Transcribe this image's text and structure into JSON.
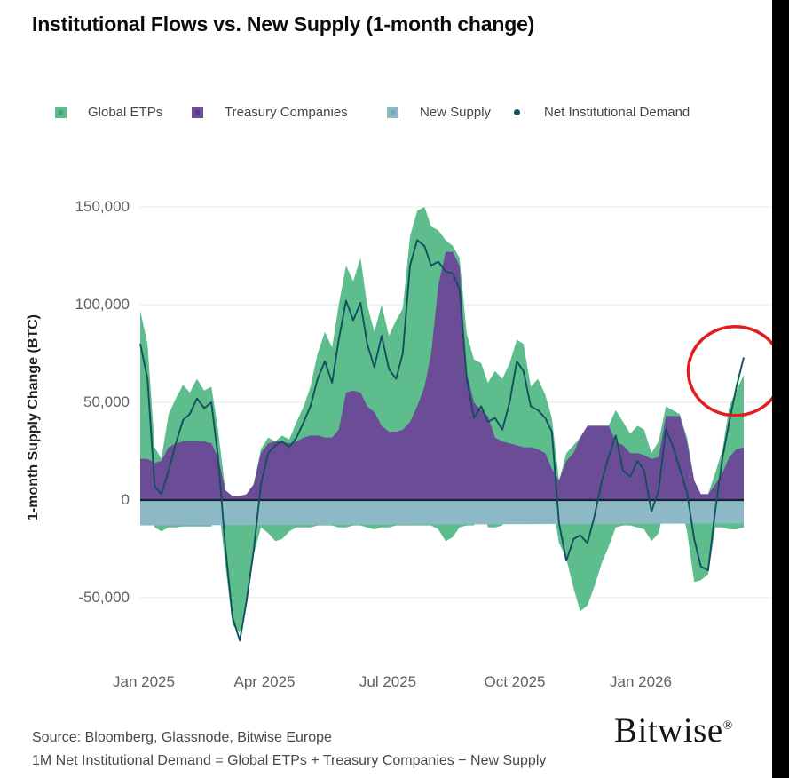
{
  "title": "Institutional Flows vs. New Supply (1-month change)",
  "colors": {
    "global_etps": "#5dbd8c",
    "treasury_companies": "#6b4c96",
    "new_supply": "#8db9c6",
    "net_demand_line": "#134f5e",
    "zero_line": "#16262e",
    "gridline": "#ececec",
    "annotation_circle": "#e11d1d",
    "title_text": "#0b0b0b",
    "tick_text": "#5d6266"
  },
  "legend": {
    "items": [
      {
        "label": "Global ETPs",
        "marker": "square",
        "color": "#5dbd8c"
      },
      {
        "label": "Treasury Companies",
        "marker": "square",
        "color": "#6b4c96"
      },
      {
        "label": "New Supply",
        "marker": "square",
        "color": "#8db9c6"
      },
      {
        "label": "Net Institutional Demand",
        "marker": "dot",
        "color": "#134f5e"
      }
    ]
  },
  "y_axis": {
    "title": "1-month Supply Change (BTC)",
    "ticks": [
      "150,000",
      "100,000",
      "50,000",
      "0",
      "-50,000"
    ]
  },
  "x_axis": {
    "ticks": [
      {
        "label": "Jan 2025",
        "f": 0.006
      },
      {
        "label": "Apr 2025",
        "f": 0.206
      },
      {
        "label": "Jul 2025",
        "f": 0.41
      },
      {
        "label": "Oct 2025",
        "f": 0.62
      },
      {
        "label": "Jan 2026",
        "f": 0.829
      }
    ]
  },
  "footer": {
    "source": "Source: Bloomberg, Glassnode, Bitwise Europe",
    "formula": "1M Net Institutional Demand = Global ETPs + Treasury Companies − New Supply"
  },
  "logo": {
    "text": "Bitwise",
    "registered": "®"
  },
  "annotation": {
    "shape": "ellipse",
    "meaning": "highlights final spike in net institutional demand",
    "center_f": 0.986,
    "center_value_kbtc": 66,
    "rx": 53,
    "ry": 50,
    "stroke_width": 3.5,
    "color": "#e11d1d"
  },
  "chart_data": {
    "type": "area",
    "subtype": "stacked areas (Global ETPs over Treasury Companies), New Supply band below zero, net demand line overlay",
    "title": "Institutional Flows vs. New Supply (1-month change)",
    "xlabel": "",
    "ylabel": "1-month Supply Change (BTC)",
    "units": "thousand BTC",
    "x_range": [
      "late Dec 2024",
      "early Mar 2026"
    ],
    "ylim_kbtc": [
      -75,
      160
    ],
    "y_tick_values_kbtc": [
      150,
      100,
      50,
      0,
      -50
    ],
    "grid": "horizontal only",
    "legend_position": "top",
    "new_supply_band_kbtc": {
      "start": -13,
      "end": -12
    },
    "points": {
      "columns": [
        "t_fraction",
        "treasury_kbtc",
        "stack_top_kbtc",
        "etp_negative_kbtc",
        "net_demand_kbtc"
      ],
      "rows": [
        [
          0.0,
          21,
          97,
          0,
          80
        ],
        [
          0.012,
          21,
          80,
          0,
          62
        ],
        [
          0.024,
          19,
          27,
          -14,
          7
        ],
        [
          0.035,
          20,
          21,
          -16,
          3
        ],
        [
          0.047,
          27,
          44,
          -14,
          15
        ],
        [
          0.059,
          29,
          52,
          -14,
          29
        ],
        [
          0.071,
          30,
          59,
          -13.5,
          41
        ],
        [
          0.082,
          30,
          55,
          -13.5,
          44
        ],
        [
          0.094,
          30,
          62,
          -13.5,
          52
        ],
        [
          0.106,
          30,
          56,
          -13.5,
          47
        ],
        [
          0.118,
          29,
          58,
          -13.5,
          50
        ],
        [
          0.129,
          22,
          36,
          0,
          22
        ],
        [
          0.141,
          5,
          5,
          -33,
          -24
        ],
        [
          0.153,
          2,
          2,
          -64,
          -60
        ],
        [
          0.165,
          2,
          2,
          -68,
          -72
        ],
        [
          0.176,
          3,
          3,
          -52,
          -52
        ],
        [
          0.188,
          8,
          8,
          -28,
          -26
        ],
        [
          0.2,
          24,
          26,
          -14,
          8
        ],
        [
          0.212,
          29,
          32,
          -17,
          24
        ],
        [
          0.224,
          30,
          30,
          -21,
          28
        ],
        [
          0.235,
          30,
          33,
          -20,
          30
        ],
        [
          0.247,
          29,
          31,
          -16,
          27
        ],
        [
          0.259,
          30,
          40,
          -14,
          32
        ],
        [
          0.271,
          32,
          48,
          -14,
          40
        ],
        [
          0.282,
          33,
          58,
          -14,
          48
        ],
        [
          0.294,
          33,
          75,
          -13,
          62
        ],
        [
          0.306,
          32,
          86,
          -13,
          71
        ],
        [
          0.318,
          32,
          78,
          -13,
          60
        ],
        [
          0.329,
          36,
          100,
          -14,
          82
        ],
        [
          0.341,
          55,
          120,
          -14,
          102
        ],
        [
          0.353,
          56,
          112,
          -13,
          92
        ],
        [
          0.365,
          55,
          124,
          -13,
          101
        ],
        [
          0.376,
          48,
          100,
          -14,
          80
        ],
        [
          0.388,
          45,
          86,
          -15,
          68
        ],
        [
          0.4,
          38,
          100,
          -14,
          84
        ],
        [
          0.412,
          35,
          84,
          -14,
          67
        ],
        [
          0.424,
          35,
          92,
          -13,
          62
        ],
        [
          0.435,
          36,
          98,
          -13,
          75
        ],
        [
          0.447,
          40,
          135,
          -13,
          120
        ],
        [
          0.459,
          48,
          148,
          -13,
          133
        ],
        [
          0.471,
          58,
          150,
          -13,
          130
        ],
        [
          0.482,
          75,
          140,
          -13,
          120
        ],
        [
          0.494,
          110,
          138,
          -15,
          122
        ],
        [
          0.506,
          127,
          133,
          -21,
          117
        ],
        [
          0.518,
          127,
          130,
          -19,
          116
        ],
        [
          0.529,
          120,
          124,
          -14,
          108
        ],
        [
          0.541,
          65,
          85,
          -13,
          62
        ],
        [
          0.553,
          50,
          72,
          -13,
          42
        ],
        [
          0.565,
          46,
          70,
          0,
          48
        ],
        [
          0.576,
          43,
          60,
          -14,
          40
        ],
        [
          0.588,
          32,
          66,
          -14,
          42
        ],
        [
          0.6,
          30,
          62,
          -13,
          36
        ],
        [
          0.612,
          29,
          70,
          0,
          50
        ],
        [
          0.624,
          28,
          82,
          0,
          71
        ],
        [
          0.635,
          27,
          80,
          0,
          66
        ],
        [
          0.647,
          27,
          58,
          0,
          48
        ],
        [
          0.659,
          26,
          62,
          0,
          46
        ],
        [
          0.671,
          24,
          54,
          0,
          42
        ],
        [
          0.682,
          16,
          42,
          0,
          35
        ],
        [
          0.694,
          10,
          10,
          -22,
          -12
        ],
        [
          0.706,
          20,
          24,
          -30,
          -31
        ],
        [
          0.718,
          24,
          28,
          -45,
          -20
        ],
        [
          0.729,
          32,
          32,
          -57,
          -18
        ],
        [
          0.741,
          38,
          38,
          -54,
          -22
        ],
        [
          0.753,
          38,
          38,
          -44,
          -8
        ],
        [
          0.765,
          38,
          38,
          -32,
          10
        ],
        [
          0.776,
          38,
          38,
          -24,
          22
        ],
        [
          0.788,
          30,
          46,
          -14,
          33
        ],
        [
          0.8,
          28,
          40,
          -13,
          15
        ],
        [
          0.812,
          24,
          34,
          -13,
          12
        ],
        [
          0.824,
          24,
          38,
          -14,
          20
        ],
        [
          0.835,
          23,
          36,
          -15,
          15
        ],
        [
          0.847,
          21,
          24,
          -21,
          -6
        ],
        [
          0.859,
          22,
          30,
          -17,
          5
        ],
        [
          0.871,
          43,
          48,
          0,
          36
        ],
        [
          0.882,
          43,
          46,
          0,
          28
        ],
        [
          0.894,
          43,
          44,
          0,
          16
        ],
        [
          0.906,
          30,
          32,
          -16,
          4
        ],
        [
          0.918,
          10,
          10,
          -42,
          -20
        ],
        [
          0.929,
          3,
          3,
          -41,
          -34
        ],
        [
          0.941,
          3,
          3,
          -38,
          -36
        ],
        [
          0.953,
          8,
          14,
          -14,
          -5
        ],
        [
          0.965,
          14,
          26,
          -14,
          22
        ],
        [
          0.976,
          22,
          48,
          -15,
          40
        ],
        [
          0.988,
          26,
          56,
          -15,
          58
        ],
        [
          1.0,
          27,
          64,
          -14,
          73
        ]
      ]
    }
  }
}
